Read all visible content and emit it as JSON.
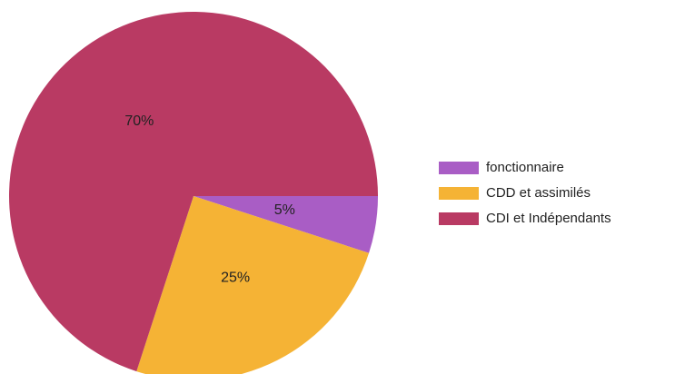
{
  "chart_data": {
    "type": "pie",
    "categories": [
      "fonctionnaire",
      "CDD et assimilés",
      "CDI et Indépendants"
    ],
    "values": [
      5,
      25,
      70
    ],
    "value_labels": [
      "5%",
      "25%",
      "70%"
    ],
    "colors": [
      "#a95dc5",
      "#f5b335",
      "#b93a63"
    ],
    "legend": "right"
  }
}
